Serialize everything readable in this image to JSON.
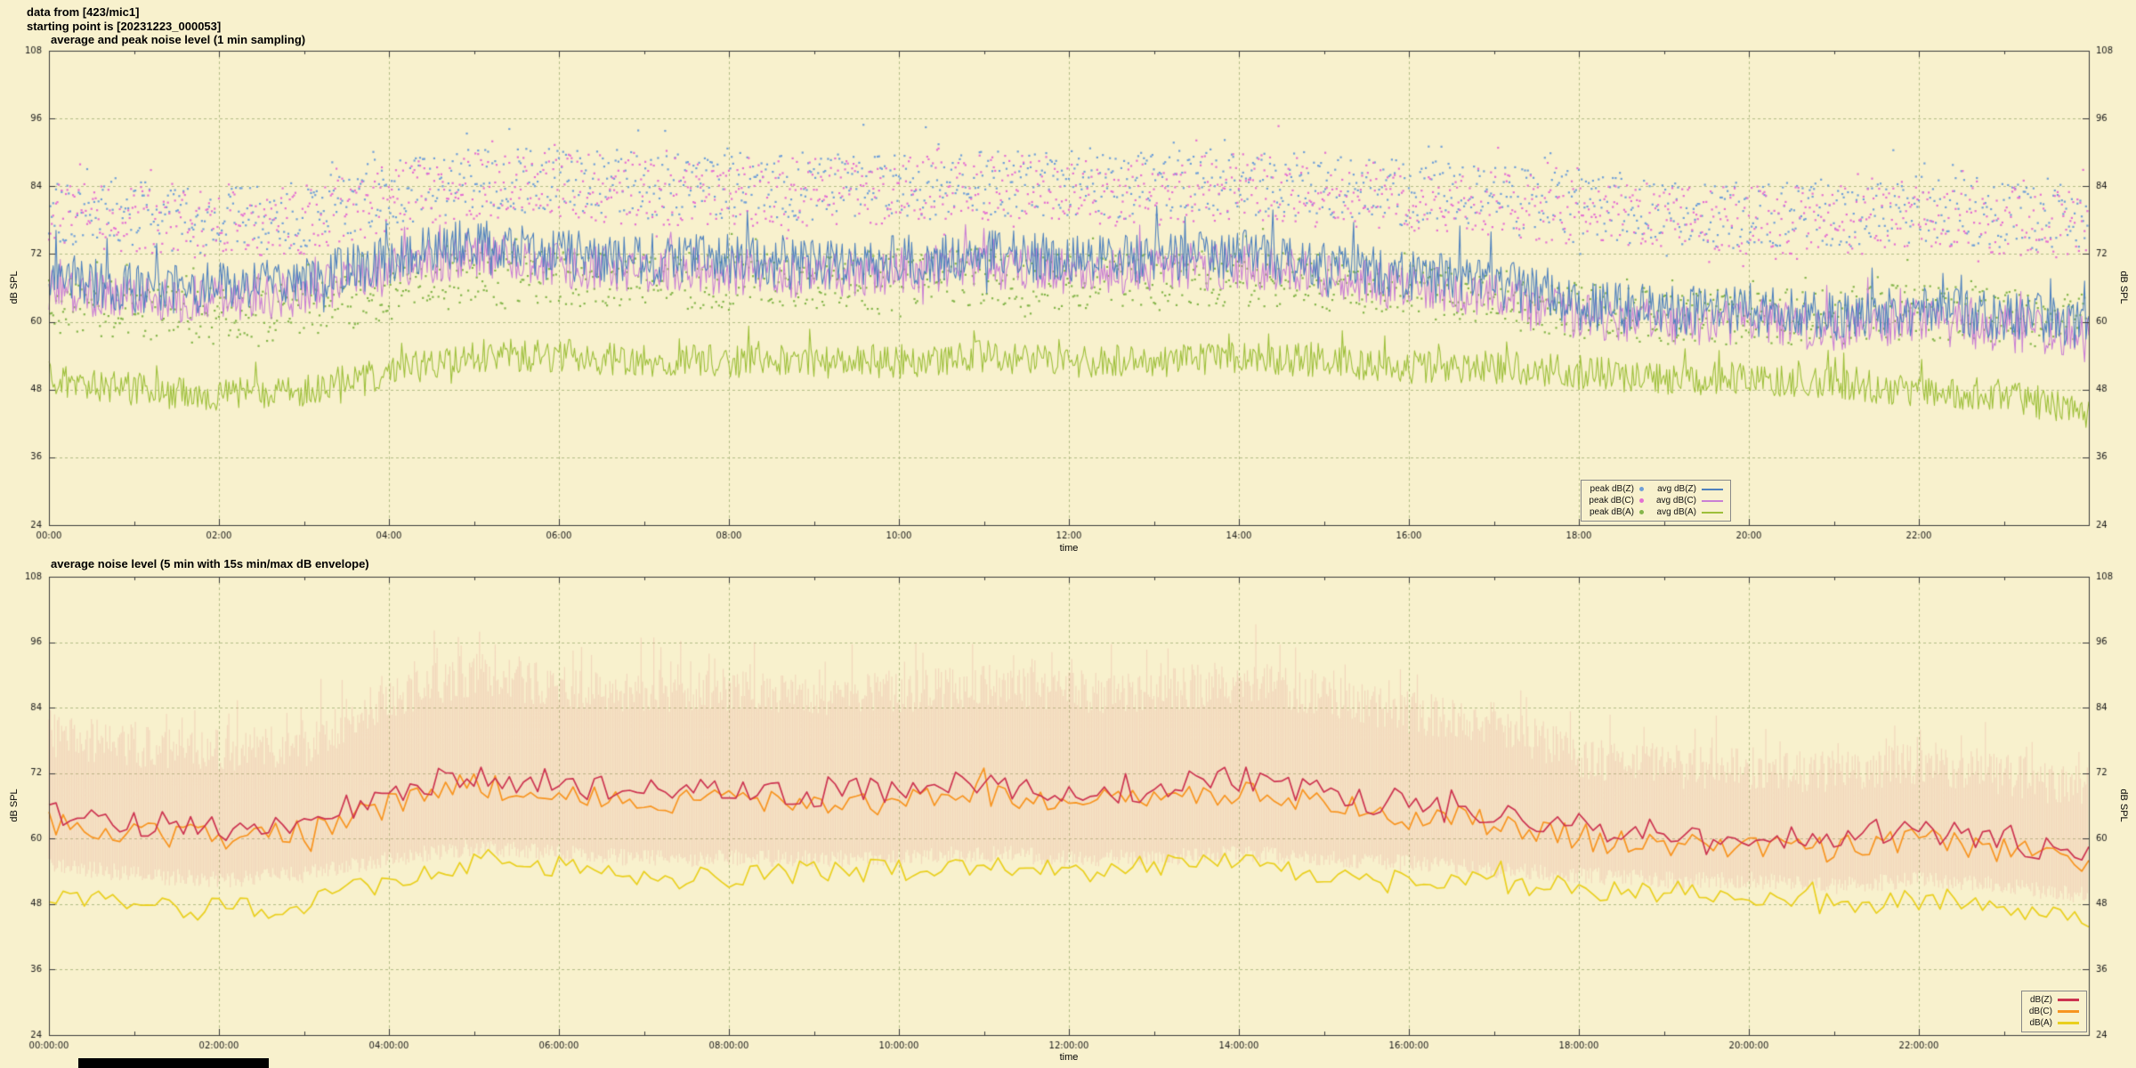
{
  "header": {
    "line1": "data from [423/mic1]",
    "line2": "starting point is [20231223_000053]"
  },
  "page": {
    "background": "#f8f1cd",
    "legend_background": "#f8f1cd",
    "grid_color": "#b3bc86",
    "axis_color": "#3a3a3a",
    "text_color": "#1a1a1a"
  },
  "chart_data": [
    {
      "type": "line",
      "subtype": "scatter+line, 1 min sampling",
      "title": "average and peak noise level (1 min sampling)",
      "xlabel": "time",
      "ylabel": "dB SPL",
      "ylabel_right": "dB SPL",
      "ylim": [
        24,
        108
      ],
      "yticks": [
        24,
        36,
        48,
        60,
        72,
        84,
        96,
        108
      ],
      "x_hours": 24,
      "xtick_interval_hours": 2,
      "xticks": [
        "00:00",
        "02:00",
        "04:00",
        "06:00",
        "08:00",
        "10:00",
        "12:00",
        "14:00",
        "16:00",
        "18:00",
        "20:00",
        "22:00"
      ],
      "grid": true,
      "legend": {
        "position": "bottom-right",
        "box": true,
        "columns": [
          [
            "peak dB(Z)",
            "peak dB(C)",
            "peak dB(A)"
          ],
          [
            "avg dB(Z)",
            "avg dB(C)",
            "avg dB(A)"
          ]
        ]
      },
      "series": [
        {
          "name": "peak dB(Z)",
          "style": "scatter",
          "color": "#6f9fd8",
          "sample_minutes": 1,
          "seed": 101,
          "jitter": 6,
          "spike_prob": 0.12,
          "spike_amp": 9,
          "hourly": [
            80,
            79,
            78,
            79,
            83,
            85,
            85,
            84,
            84,
            84,
            84,
            85,
            84,
            84,
            85,
            84,
            83,
            82,
            80,
            79,
            79,
            79,
            80,
            79,
            78
          ]
        },
        {
          "name": "peak dB(C)",
          "style": "scatter",
          "color": "#e46fd2",
          "sample_minutes": 1,
          "seed": 202,
          "jitter": 6,
          "spike_prob": 0.12,
          "spike_amp": 9,
          "hourly": [
            79,
            78,
            77,
            78,
            82,
            84,
            84,
            83,
            83,
            83,
            83,
            84,
            83,
            83,
            84,
            83,
            82,
            81,
            79,
            78,
            78,
            78,
            79,
            78,
            77
          ]
        },
        {
          "name": "peak dB(A)",
          "style": "scatter",
          "color": "#84b54a",
          "sample_minutes": 1,
          "seed": 303,
          "jitter": 5,
          "spike_prob": 0.1,
          "spike_amp": 7,
          "hourly": [
            63,
            62,
            61,
            62,
            65,
            68,
            68,
            67,
            67,
            67,
            67,
            68,
            67,
            67,
            68,
            67,
            66,
            64,
            62,
            61,
            61,
            61,
            62,
            61,
            60
          ]
        },
        {
          "name": "avg dB(A)",
          "style": "line",
          "color": "#9dbf3a",
          "linewidth": 1.1,
          "sample_minutes": 1,
          "seed": 606,
          "jitter": 3,
          "spike_prob": 0.05,
          "spike_amp": 6,
          "hourly": [
            50,
            48,
            47,
            48,
            51,
            54,
            54,
            53,
            53,
            53,
            53,
            54,
            53,
            53,
            54,
            53,
            52,
            52,
            51,
            50,
            50,
            49,
            48,
            47,
            44
          ]
        },
        {
          "name": "avg dB(C)",
          "style": "line",
          "color": "#c97fd4",
          "linewidth": 1.1,
          "sample_minutes": 1,
          "seed": 505,
          "jitter": 4.2,
          "spike_prob": 0.06,
          "spike_amp": 8,
          "hourly": [
            66,
            64,
            64,
            65,
            69,
            72,
            70,
            69,
            69,
            68,
            69,
            70,
            69,
            69,
            70,
            68,
            66,
            65,
            61,
            60,
            60,
            59,
            60,
            59,
            58
          ]
        },
        {
          "name": "avg dB(Z)",
          "style": "line",
          "color": "#4f81bd",
          "linewidth": 1.1,
          "sample_minutes": 1,
          "seed": 404,
          "jitter": 4.5,
          "spike_prob": 0.07,
          "spike_amp": 9,
          "hourly": [
            68,
            66,
            66,
            67,
            71,
            74,
            72,
            71,
            71,
            70,
            71,
            72,
            71,
            71,
            72,
            70,
            68,
            67,
            63,
            62,
            62,
            61,
            62,
            61,
            60
          ]
        }
      ]
    },
    {
      "type": "line",
      "subtype": "5 min averages with 15s min/max envelope",
      "title": "average noise level (5 min with 15s min/max dB envelope)",
      "xlabel": "time",
      "ylabel": "dB SPL",
      "ylabel_right": "dB SPL",
      "ylim": [
        24,
        108
      ],
      "yticks": [
        24,
        36,
        48,
        60,
        72,
        84,
        96,
        108
      ],
      "x_hours": 24,
      "xtick_interval_hours": 2,
      "xticks": [
        "00:00:00",
        "02:00:00",
        "04:00:00",
        "06:00:00",
        "08:00:00",
        "10:00:00",
        "12:00:00",
        "14:00:00",
        "16:00:00",
        "18:00:00",
        "20:00:00",
        "22:00:00"
      ],
      "grid": true,
      "legend": {
        "position": "bottom-right",
        "box": true,
        "columns": [
          [
            "dB(Z)",
            "dB(C)",
            "dB(A)"
          ]
        ]
      },
      "series": [
        {
          "name": "15s min/max envelope",
          "style": "envelope",
          "color": "#e28a8a",
          "alpha": 0.25,
          "sample_minutes": 1,
          "seed": 707,
          "jitter": 4,
          "spike_prob": 0.12,
          "spike_amp": 7,
          "min_hourly": [
            57,
            55,
            54,
            55,
            58,
            60,
            59,
            58,
            58,
            58,
            58,
            59,
            58,
            58,
            59,
            58,
            57,
            56,
            55,
            54,
            54,
            53,
            54,
            53,
            51
          ],
          "max_hourly": [
            79,
            77,
            76,
            77,
            86,
            90,
            88,
            87,
            87,
            86,
            87,
            88,
            87,
            87,
            89,
            86,
            83,
            81,
            75,
            73,
            73,
            72,
            74,
            72,
            69
          ]
        },
        {
          "name": "dB(A)",
          "style": "line",
          "color": "#e9cf1e",
          "linewidth": 1.7,
          "sample_minutes": 5,
          "seed": 1001,
          "jitter": 2.2,
          "spike_prob": 0.05,
          "spike_amp": 5,
          "hourly": [
            50,
            48,
            47,
            48,
            52,
            56,
            55,
            53,
            53,
            54,
            54,
            55,
            54,
            55,
            56,
            53,
            52,
            52,
            51,
            50,
            50,
            48,
            49,
            48,
            45
          ]
        },
        {
          "name": "dB(C)",
          "style": "line",
          "color": "#f79420",
          "linewidth": 1.7,
          "sample_minutes": 5,
          "seed": 909,
          "jitter": 2.4,
          "spike_prob": 0.05,
          "spike_amp": 6,
          "hourly": [
            63,
            61,
            60,
            61,
            66,
            70,
            68,
            67,
            67,
            66,
            67,
            68,
            67,
            67,
            69,
            66,
            64,
            63,
            60,
            59,
            59,
            58,
            60,
            58,
            55
          ]
        },
        {
          "name": "dB(Z)",
          "style": "line",
          "color": "#cc3350",
          "linewidth": 1.7,
          "sample_minutes": 5,
          "seed": 808,
          "jitter": 2.6,
          "spike_prob": 0.05,
          "spike_amp": 7,
          "hourly": [
            65,
            63,
            62,
            63,
            68,
            72,
            70,
            69,
            69,
            68,
            69,
            70,
            69,
            69,
            71,
            68,
            66,
            65,
            62,
            61,
            61,
            60,
            62,
            60,
            57
          ]
        }
      ]
    }
  ]
}
